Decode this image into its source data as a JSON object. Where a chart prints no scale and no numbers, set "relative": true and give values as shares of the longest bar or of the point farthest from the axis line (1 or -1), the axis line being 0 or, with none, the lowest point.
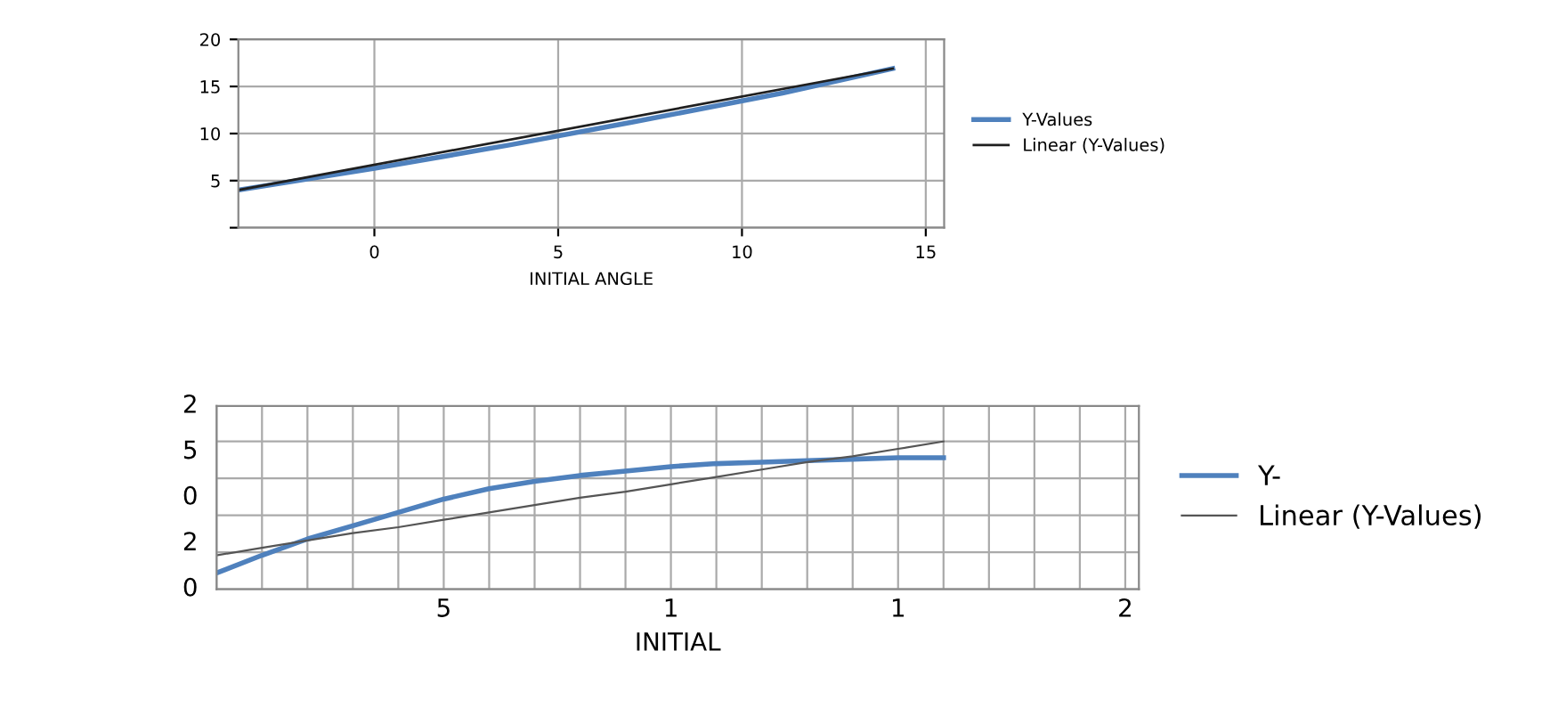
{
  "chart_data": [
    {
      "type": "line",
      "xlabel": "INITIAL ANGLE",
      "xlim": [
        -3.7,
        15.5
      ],
      "xticks": [
        0,
        5,
        10,
        15
      ],
      "ylim": [
        0,
        20
      ],
      "yticks": [
        {
          "value": 0,
          "label": null
        },
        5,
        10,
        15,
        20
      ],
      "grid": true,
      "legend": "right",
      "series": [
        {
          "name": "Y-Values",
          "color": "#4f81bd",
          "x": [
            -3.7,
            0,
            3.7,
            7,
            11.1,
            14.1
          ],
          "values": [
            4.0,
            6.3,
            8.8,
            11.2,
            14.3,
            16.9
          ]
        },
        {
          "name": "Linear (Y-Values)",
          "color": "#1f1f1f",
          "x": [
            -3.7,
            14.1
          ],
          "values": [
            4.0,
            16.9
          ]
        }
      ]
    },
    {
      "type": "line",
      "xlabel": "INITIAL",
      "relative": true,
      "annotations": [
        "2",
        "5",
        "0",
        "2",
        "0"
      ],
      "categories": [
        null,
        null,
        null,
        null,
        null,
        "5",
        null,
        null,
        null,
        null,
        "1",
        null,
        null,
        null,
        null,
        "1",
        null,
        null,
        null,
        null,
        "2"
      ],
      "grid": true,
      "legend": "right",
      "series": [
        {
          "name": "Y-",
          "color": "#4f81bd",
          "values": [
            0.11,
            0.23,
            0.34,
            0.43,
            0.52,
            0.61,
            0.68,
            0.73,
            0.77,
            0.8,
            0.83,
            0.85,
            0.86,
            0.87,
            0.88,
            0.89,
            0.89,
            null,
            null,
            null,
            null
          ]
        },
        {
          "name": "Linear (Y-Values)",
          "color": "#555555",
          "values": [
            0.23,
            0.28,
            0.33,
            0.38,
            0.42,
            0.47,
            0.52,
            0.57,
            0.62,
            0.66,
            0.71,
            0.76,
            0.81,
            0.86,
            0.9,
            0.95,
            1.0,
            null,
            null,
            null,
            null
          ]
        }
      ]
    }
  ]
}
